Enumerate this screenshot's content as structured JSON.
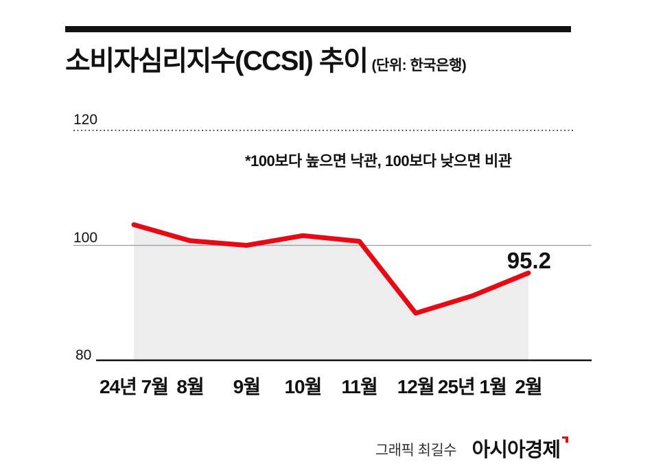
{
  "header": {
    "title": "소비자심리지수(CCSI) 추이",
    "unit_note": "(단위: 한국은행)"
  },
  "chart_data": {
    "type": "area",
    "title": "소비자심리지수(CCSI) 추이",
    "subtitle": "(단위: 한국은행)",
    "categories": [
      "24년 7월",
      "8월",
      "9월",
      "10월",
      "11월",
      "12월",
      "25년 1월",
      "2월"
    ],
    "values": [
      103.6,
      100.8,
      100.0,
      101.7,
      100.7,
      88.2,
      91.2,
      95.2
    ],
    "ylim": [
      80,
      120
    ],
    "yticks": [
      "120",
      "100",
      "80"
    ],
    "reference_line": 100,
    "annotation": "*100보다 높으면 낙관, 100보다 낮으면 비관",
    "last_value_label": "95.2",
    "line_color": "#e60a14",
    "fill_color": "#ededed",
    "grid": "dotted gridline at 120, thin reference line at 100, solid baseline axis at 80",
    "legend": "none"
  },
  "footer": {
    "credit": "그래픽 최길수",
    "brand": "아시아경제"
  }
}
